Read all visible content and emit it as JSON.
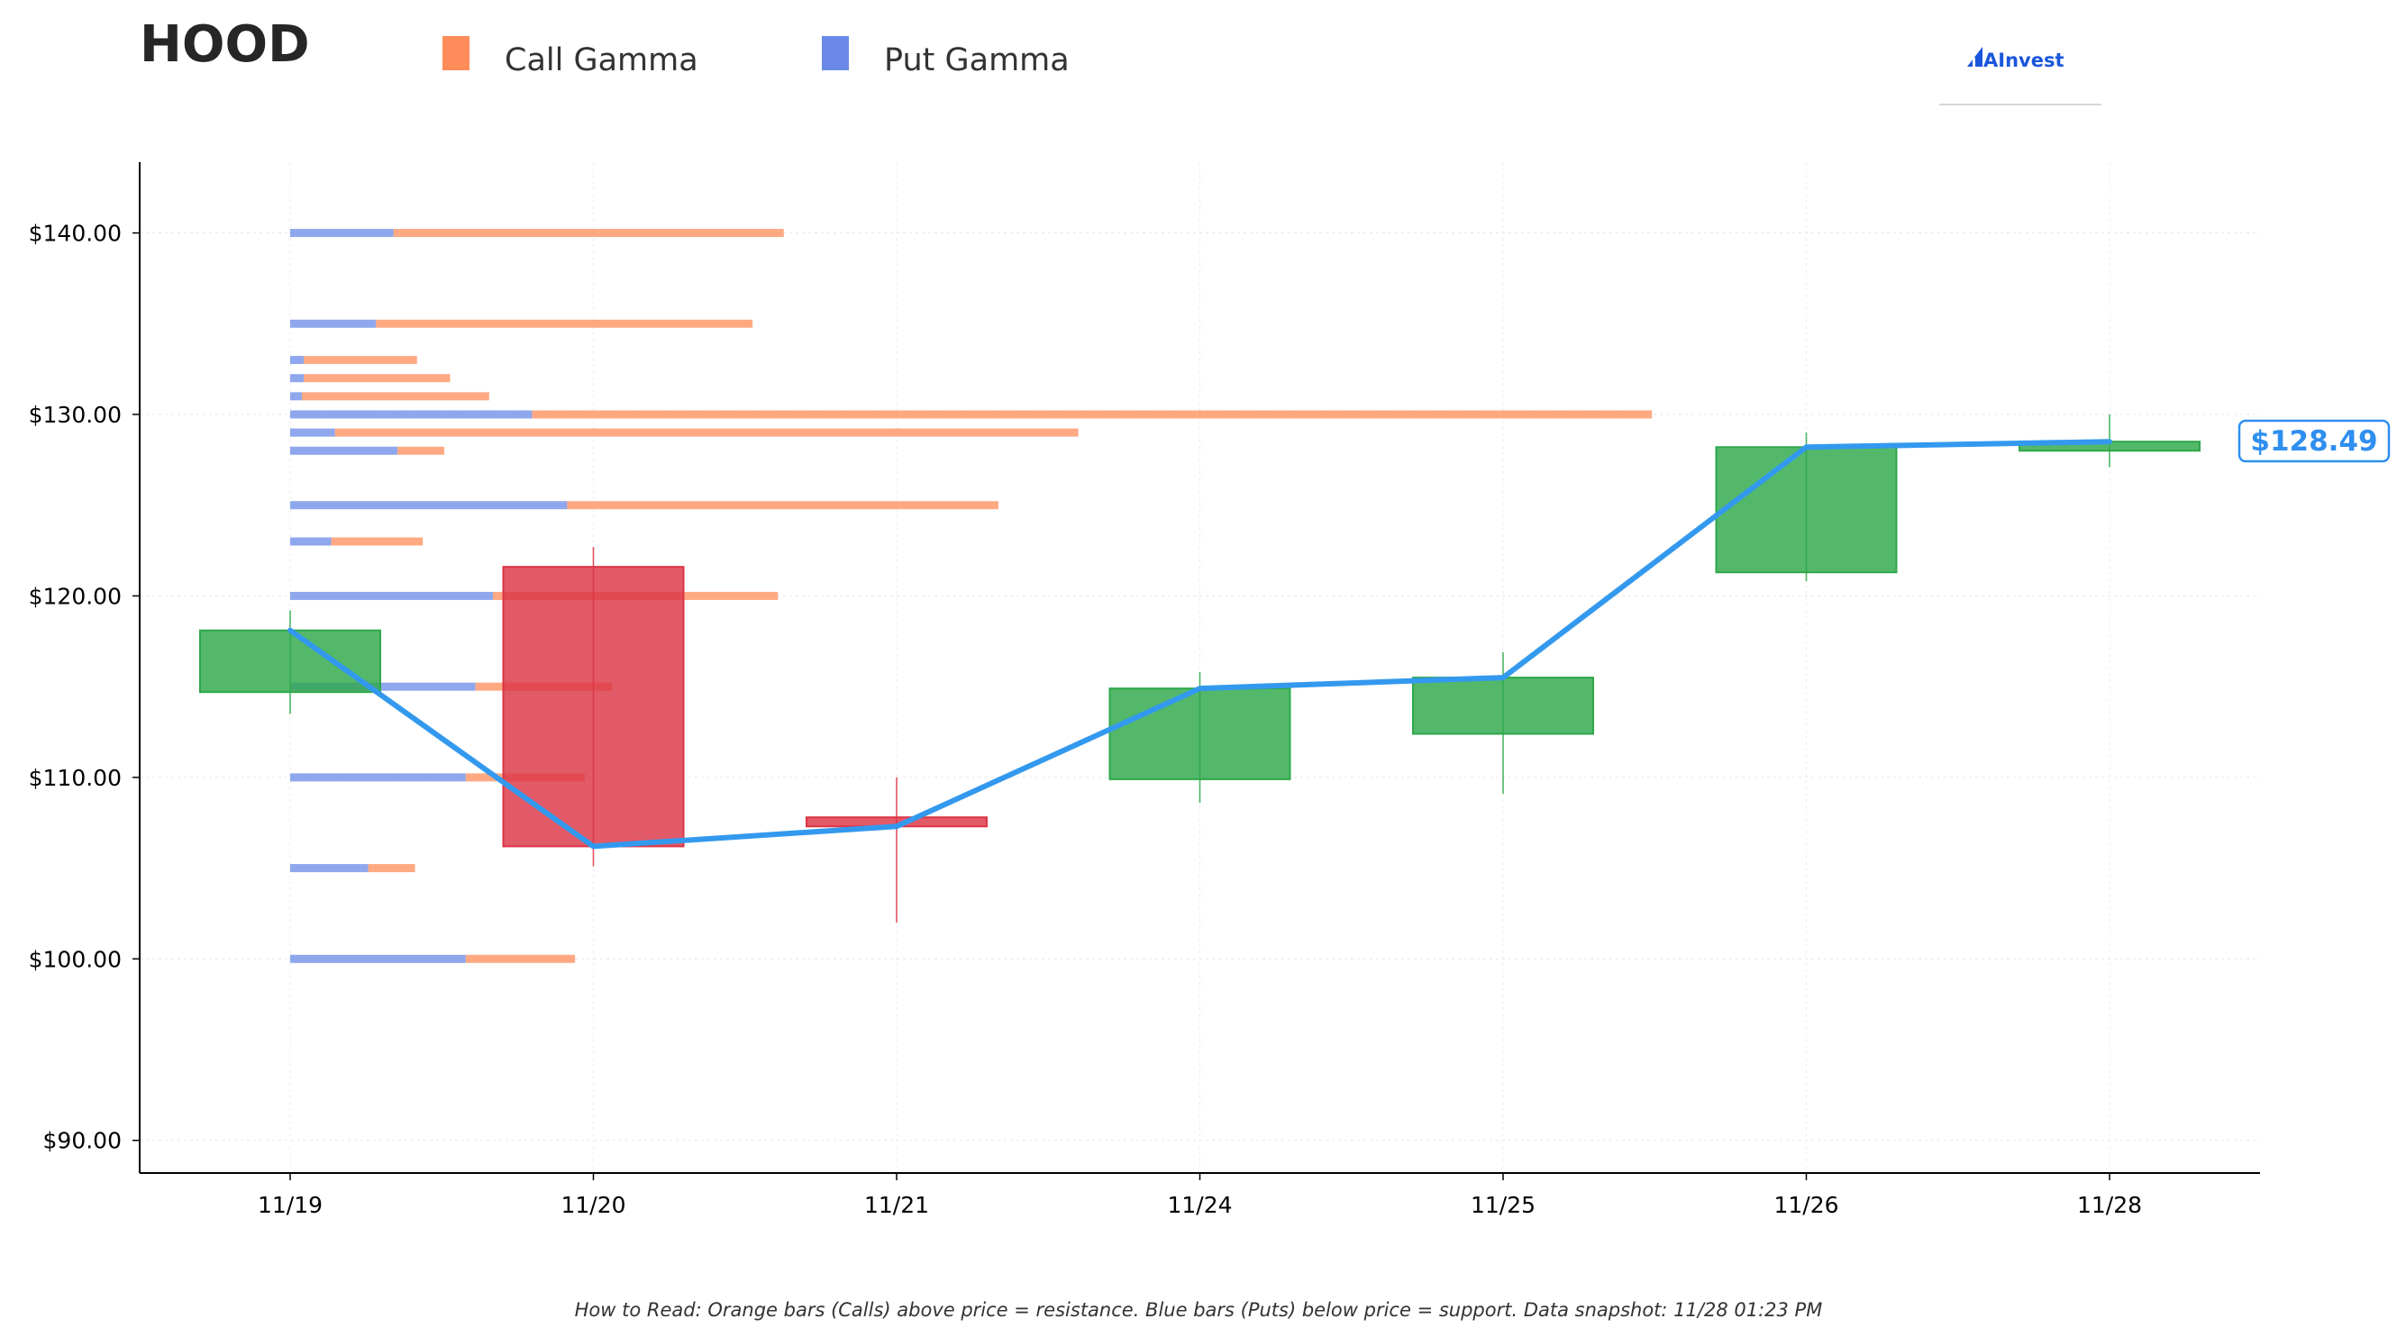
{
  "chart_data": {
    "type": "candlestick",
    "title": "HOOD",
    "legend": {
      "placement": "top",
      "entries": [
        {
          "label": "Call Gamma",
          "color": "#ff8c5a"
        },
        {
          "label": "Put Gamma",
          "color": "#6a89e6"
        }
      ]
    },
    "logo_text": "AInvest",
    "y_ticks": [
      {
        "value": 90,
        "label": "$90.00"
      },
      {
        "value": 100,
        "label": "$100.00"
      },
      {
        "value": 110,
        "label": "$110.00"
      },
      {
        "value": 120,
        "label": "$120.00"
      },
      {
        "value": 130,
        "label": "$130.00"
      },
      {
        "value": 140,
        "label": "$140.00"
      }
    ],
    "ylim": [
      88.2,
      143.9
    ],
    "grid": true,
    "categories": [
      "11/19",
      "11/20",
      "11/21",
      "11/24",
      "11/25",
      "11/26",
      "11/28"
    ],
    "candles": [
      {
        "date": "11/19",
        "open": 114.7,
        "high": 119.2,
        "low": 113.5,
        "close": 118.1
      },
      {
        "date": "11/20",
        "open": 121.6,
        "high": 122.7,
        "low": 105.1,
        "close": 106.2
      },
      {
        "date": "11/21",
        "open": 107.8,
        "high": 110.0,
        "low": 102.0,
        "close": 107.3
      },
      {
        "date": "11/24",
        "open": 109.9,
        "high": 115.8,
        "low": 108.6,
        "close": 114.9
      },
      {
        "date": "11/25",
        "open": 112.4,
        "high": 116.9,
        "low": 109.1,
        "close": 115.5
      },
      {
        "date": "11/26",
        "open": 121.3,
        "high": 129.0,
        "low": 120.8,
        "close": 128.2
      },
      {
        "date": "11/28",
        "open": 128.0,
        "high": 130.0,
        "low": 127.1,
        "close": 128.5
      }
    ],
    "close_line": [
      118.1,
      106.2,
      107.3,
      114.9,
      115.5,
      128.2,
      128.5
    ],
    "last_price_label": "$128.49",
    "gamma_strikes": [
      {
        "strike": 140,
        "put": 0.265,
        "call": 1.0
      },
      {
        "strike": 135,
        "put": 0.22,
        "call": 0.965
      },
      {
        "strike": 133,
        "put": 0.035,
        "call": 0.29
      },
      {
        "strike": 132,
        "put": 0.035,
        "call": 0.375
      },
      {
        "strike": 131,
        "put": 0.03,
        "call": 0.48
      },
      {
        "strike": 130,
        "put": 0.62,
        "call": 2.87
      },
      {
        "strike": 129,
        "put": 0.115,
        "call": 1.905
      },
      {
        "strike": 128,
        "put": 0.275,
        "call": 0.12
      },
      {
        "strike": 125,
        "put": 0.71,
        "call": 1.105
      },
      {
        "strike": 123,
        "put": 0.105,
        "call": 0.235
      },
      {
        "strike": 120,
        "put": 0.52,
        "call": 0.73
      },
      {
        "strike": 115,
        "put": 0.475,
        "call": 0.35
      },
      {
        "strike": 110,
        "put": 0.45,
        "call": 0.305
      },
      {
        "strike": 105,
        "put": 0.2,
        "call": 0.12
      },
      {
        "strike": 100,
        "put": 0.45,
        "call": 0.28
      }
    ],
    "footnote": "How to Read: Orange bars (Calls) above price = resistance. Blue bars (Puts) below price = support. Data snapshot: 11/28 01:23 PM"
  }
}
